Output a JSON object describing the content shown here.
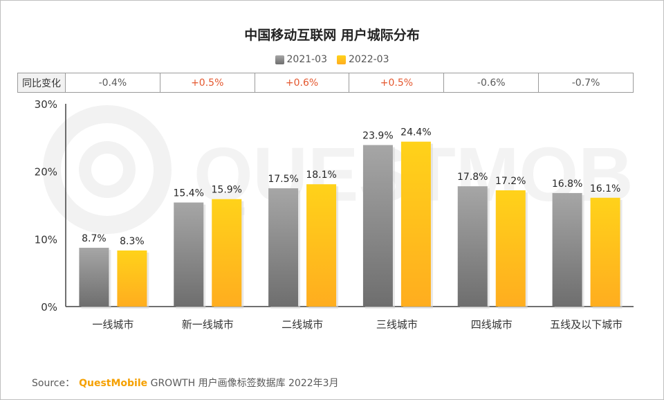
{
  "title": "中国移动互联网 用户城际分布",
  "legend": [
    {
      "label": "2021-03",
      "color": "#8c8c8c"
    },
    {
      "label": "2022-03",
      "color": "#ffc000"
    }
  ],
  "yoy": {
    "header": "同比变化",
    "values": [
      "-0.4%",
      "+0.5%",
      "+0.6%",
      "+0.5%",
      "-0.6%",
      "-0.7%"
    ]
  },
  "colors": {
    "series_2021_top": "#a6a6a6",
    "series_2021_bottom": "#6e6e6e",
    "series_2022_top": "#ffd21a",
    "series_2022_bottom": "#ffad1f",
    "positive": "#e4572e",
    "negative": "#595959"
  },
  "chart_data": {
    "type": "bar",
    "categories": [
      "一线城市",
      "新一线城市",
      "二线城市",
      "三线城市",
      "四线城市",
      "五线及以下城市"
    ],
    "series": [
      {
        "name": "2021-03",
        "values": [
          8.7,
          15.4,
          17.5,
          23.9,
          17.8,
          16.8
        ],
        "labels": [
          "8.7%",
          "15.4%",
          "17.5%",
          "23.9%",
          "17.8%",
          "16.8%"
        ]
      },
      {
        "name": "2022-03",
        "values": [
          8.3,
          15.9,
          18.1,
          24.4,
          17.2,
          16.1
        ],
        "labels": [
          "8.3%",
          "15.9%",
          "18.1%",
          "24.4%",
          "17.2%",
          "16.1%"
        ]
      }
    ],
    "yticks": [
      "0%",
      "10%",
      "20%",
      "30%"
    ],
    "ytick_values": [
      0,
      10,
      20,
      30
    ],
    "ylim": [
      0,
      30
    ],
    "grid": false
  },
  "source": {
    "prefix": "Source：",
    "brand": "QuestMobile",
    "text": "GROWTH 用户画像标签数据库 2022年3月"
  },
  "watermark": "QUESTMOBILE"
}
